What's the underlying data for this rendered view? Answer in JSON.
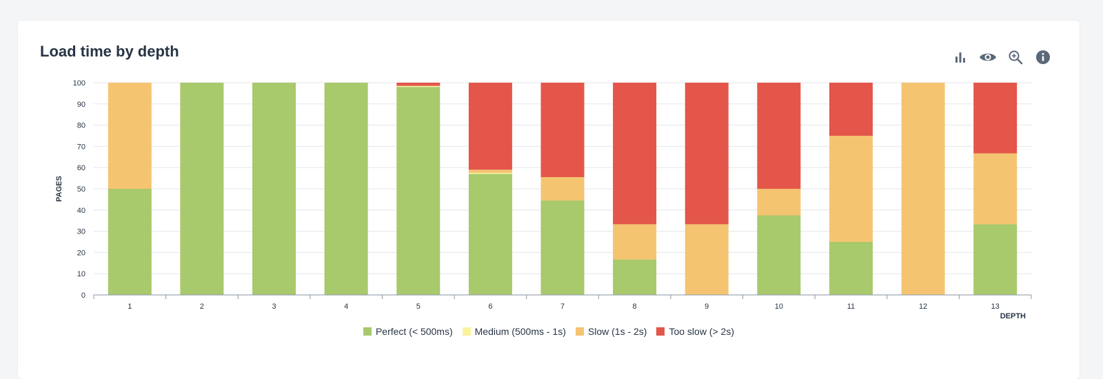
{
  "card": {
    "title": "Load time by depth"
  },
  "toolbar": {
    "icons": [
      "bar-chart-icon",
      "eye-icon",
      "zoom-icon",
      "info-icon"
    ]
  },
  "colors": {
    "perfect": "#a8c96c",
    "medium": "#fbf39b",
    "slow": "#f5c471",
    "too_slow": "#e35649",
    "grid": "#e3e6ea",
    "axis": "#8a96a3",
    "icon": "#5a6878"
  },
  "legend": {
    "perfect": "Perfect (< 500ms)",
    "medium": "Medium (500ms - 1s)",
    "slow": "Slow (1s - 2s)",
    "too_slow": "Too slow (> 2s)"
  },
  "chart_data": {
    "type": "bar",
    "stacked": true,
    "title": "Load time by depth",
    "xlabel": "DEPTH",
    "ylabel": "PAGES",
    "ylim": [
      0,
      100
    ],
    "yticks": [
      0,
      10,
      20,
      30,
      40,
      50,
      60,
      70,
      80,
      90,
      100
    ],
    "categories": [
      "1",
      "2",
      "3",
      "4",
      "5",
      "6",
      "7",
      "8",
      "9",
      "10",
      "11",
      "12",
      "13"
    ],
    "series": [
      {
        "name": "Perfect (< 500ms)",
        "key": "perfect",
        "values": [
          50,
          100,
          100,
          100,
          98,
          57,
          44.5,
          16.7,
          0,
          37.5,
          25,
          0,
          33.3
        ]
      },
      {
        "name": "Medium (500ms - 1s)",
        "key": "medium",
        "values": [
          0,
          0,
          0,
          0,
          0.5,
          0.5,
          0,
          0,
          0,
          0,
          0,
          0,
          0
        ]
      },
      {
        "name": "Slow (1s - 2s)",
        "key": "slow",
        "values": [
          50,
          0,
          0,
          0,
          0,
          1.5,
          11,
          16.6,
          33.3,
          12.5,
          50,
          100,
          33.4
        ]
      },
      {
        "name": "Too slow (> 2s)",
        "key": "too_slow",
        "values": [
          0,
          0,
          0,
          0,
          1.5,
          41,
          44.5,
          66.7,
          66.7,
          50,
          25,
          0,
          33.3
        ]
      }
    ],
    "legend_position": "bottom",
    "grid": true
  }
}
